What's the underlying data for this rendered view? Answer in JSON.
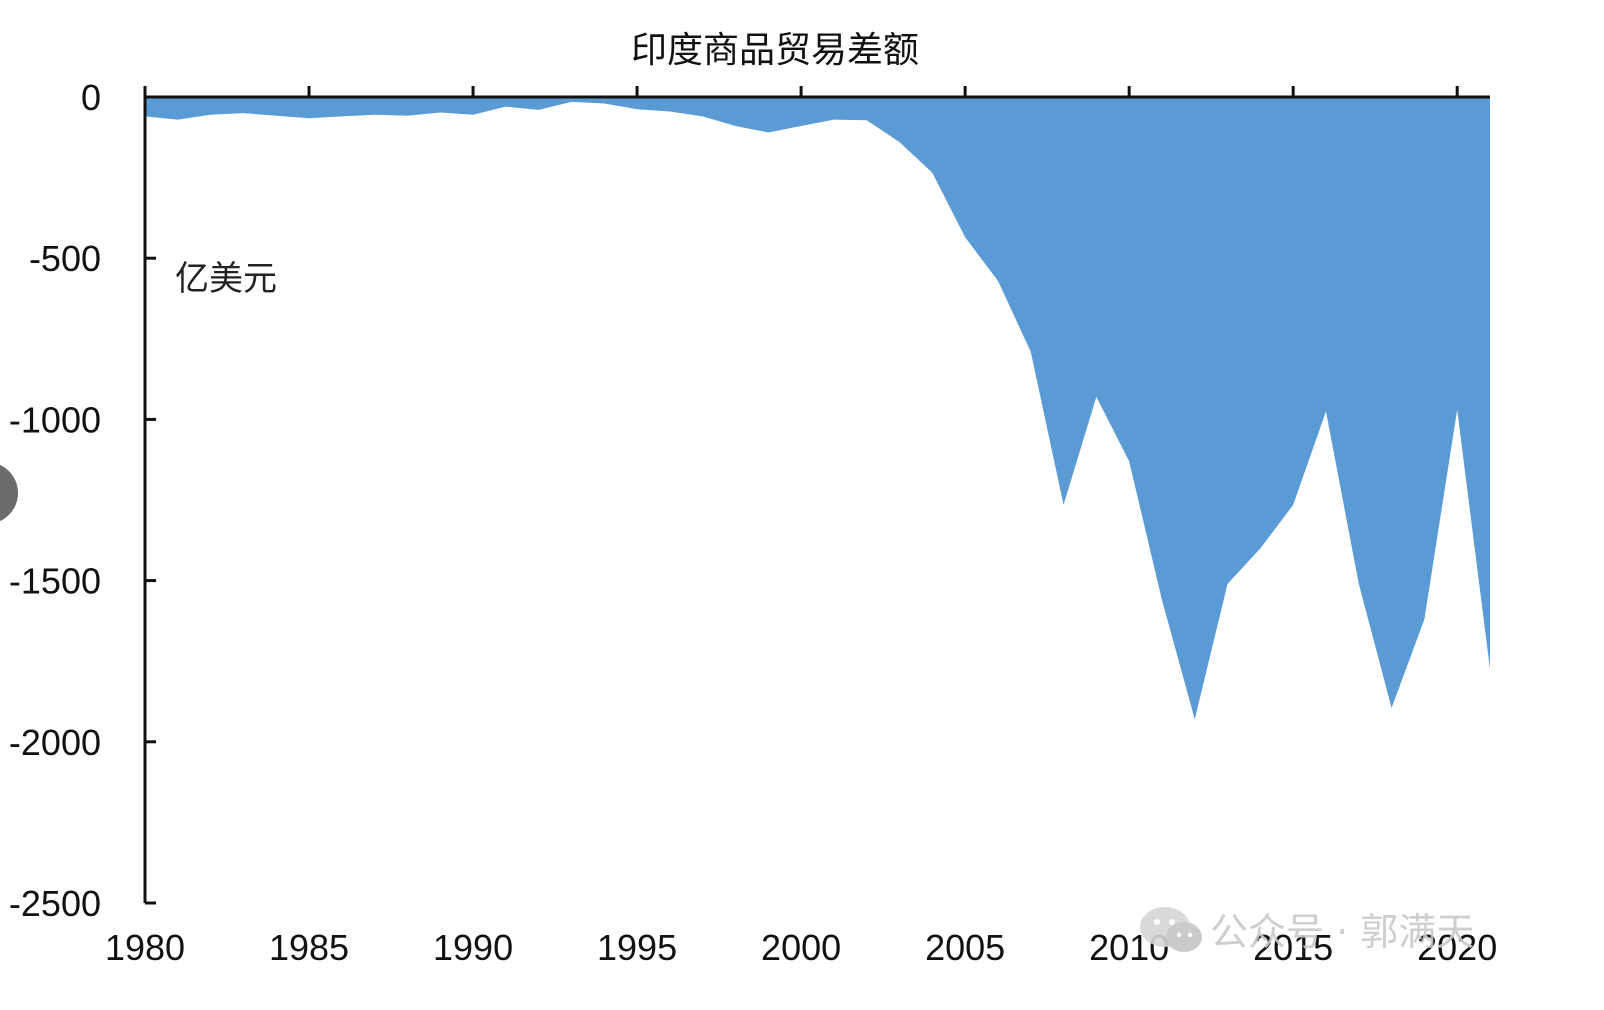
{
  "chart_data": {
    "type": "area",
    "title": "印度商品贸易差额",
    "unit_label": "亿美元",
    "x": [
      1980,
      1981,
      1982,
      1983,
      1984,
      1985,
      1986,
      1987,
      1988,
      1989,
      1990,
      1991,
      1992,
      1993,
      1994,
      1995,
      1996,
      1997,
      1998,
      1999,
      2000,
      2001,
      2002,
      2003,
      2004,
      2005,
      2006,
      2007,
      2008,
      2009,
      2010,
      2011,
      2012,
      2013,
      2014,
      2015,
      2016,
      2017,
      2018,
      2019,
      2020,
      2021
    ],
    "values": [
      -60,
      -70,
      -55,
      -50,
      -58,
      -66,
      -60,
      -55,
      -58,
      -48,
      -55,
      -30,
      -40,
      -15,
      -20,
      -38,
      -45,
      -60,
      -90,
      -110,
      -90,
      -70,
      -72,
      -140,
      -235,
      -435,
      -570,
      -790,
      -1265,
      -930,
      -1130,
      -1560,
      -1930,
      -1510,
      -1400,
      -1265,
      -975,
      -1510,
      -1895,
      -1620,
      -970,
      -1775
    ],
    "xlim": [
      1980,
      2021
    ],
    "ylim": [
      -2500,
      0
    ],
    "x_ticks": [
      1980,
      1985,
      1990,
      1995,
      2000,
      2005,
      2010,
      2015,
      2020
    ],
    "y_ticks": [
      0,
      -500,
      -1000,
      -1500,
      -2000,
      -2500
    ],
    "fill_color": "#5b9bd5",
    "axis_color": "#111111",
    "grid": false
  },
  "watermark": {
    "text": "公众号 · 郭满天",
    "icon": "wechat-icon"
  }
}
